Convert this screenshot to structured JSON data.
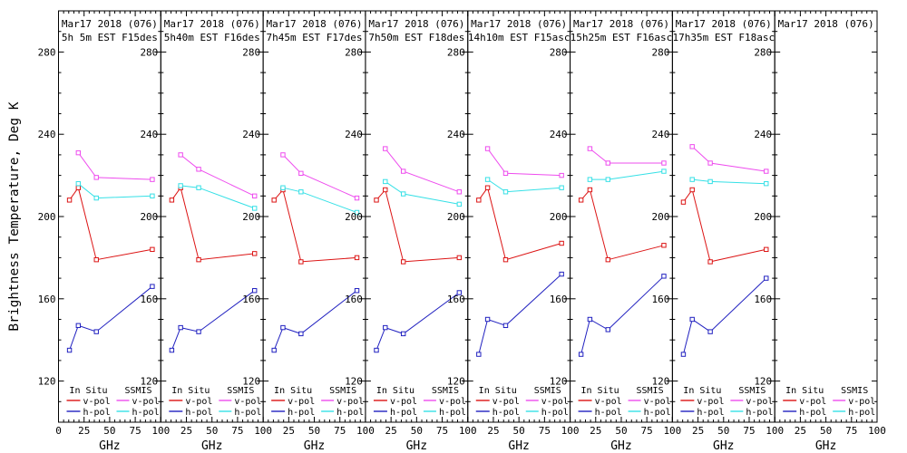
{
  "figure": {
    "y_axis_title": "Brightness Temperature, Deg K",
    "x_axis_title": "GHz",
    "background": "#ffffff",
    "frame_color": "#000000"
  },
  "colors": {
    "insitu_v": "#dc1414",
    "insitu_h": "#2121c0",
    "ssmis_v": "#ee4cee",
    "ssmis_h": "#35e0e6"
  },
  "legend": {
    "col1_header": "In Situ",
    "col2_header": "SSMIS",
    "vpol_label": "v-pol",
    "hpol_label": "h-pol"
  },
  "axes": {
    "x_range": [
      0,
      100
    ],
    "y_range": [
      100,
      300
    ],
    "x_ticks": [
      0,
      25,
      50,
      75,
      100
    ],
    "y_ticks": [
      120,
      160,
      200,
      240,
      280
    ],
    "x_minor_step": 5,
    "y_minor_step": 10,
    "grid": false
  },
  "chart_data": {
    "type": "line",
    "xlabel": "GHz",
    "ylabel": "Brightness Temperature, Deg K",
    "xlim": [
      0,
      100
    ],
    "ylim": [
      100,
      300
    ],
    "insitu_freqs_ghz": [
      10.7,
      19.35,
      37.0,
      91.655
    ],
    "ssmis_freqs_ghz": [
      19.35,
      37.0,
      91.655
    ],
    "panels": [
      {
        "title": "Mar17 2018 (076)",
        "subtitle": "5h 5m EST F15des",
        "series": [
          {
            "name": "insitu-v-pol",
            "color_key": "insitu_v",
            "x": [
              10.7,
              19.35,
              37.0,
              91.655
            ],
            "y": [
              208,
              214,
              179,
              184
            ]
          },
          {
            "name": "insitu-h-pol",
            "color_key": "insitu_h",
            "x": [
              10.7,
              19.35,
              37.0,
              91.655
            ],
            "y": [
              135,
              147,
              144,
              166
            ]
          },
          {
            "name": "ssmis-v-pol",
            "color_key": "ssmis_v",
            "x": [
              19.35,
              37.0,
              91.655
            ],
            "y": [
              231,
              219,
              218
            ]
          },
          {
            "name": "ssmis-h-pol",
            "color_key": "ssmis_h",
            "x": [
              19.35,
              37.0,
              91.655
            ],
            "y": [
              216,
              209,
              210
            ]
          }
        ]
      },
      {
        "title": "Mar17 2018 (076)",
        "subtitle": "5h40m EST F16des",
        "series": [
          {
            "name": "insitu-v-pol",
            "color_key": "insitu_v",
            "x": [
              10.7,
              19.35,
              37.0,
              91.655
            ],
            "y": [
              208,
              214,
              179,
              182
            ]
          },
          {
            "name": "insitu-h-pol",
            "color_key": "insitu_h",
            "x": [
              10.7,
              19.35,
              37.0,
              91.655
            ],
            "y": [
              135,
              146,
              144,
              164
            ]
          },
          {
            "name": "ssmis-v-pol",
            "color_key": "ssmis_v",
            "x": [
              19.35,
              37.0,
              91.655
            ],
            "y": [
              230,
              223,
              210
            ]
          },
          {
            "name": "ssmis-h-pol",
            "color_key": "ssmis_h",
            "x": [
              19.35,
              37.0,
              91.655
            ],
            "y": [
              215,
              214,
              204
            ]
          }
        ]
      },
      {
        "title": "Mar17 2018 (076)",
        "subtitle": "7h45m EST F17des",
        "series": [
          {
            "name": "insitu-v-pol",
            "color_key": "insitu_v",
            "x": [
              10.7,
              19.35,
              37.0,
              91.655
            ],
            "y": [
              208,
              213,
              178,
              180
            ]
          },
          {
            "name": "insitu-h-pol",
            "color_key": "insitu_h",
            "x": [
              10.7,
              19.35,
              37.0,
              91.655
            ],
            "y": [
              135,
              146,
              143,
              164
            ]
          },
          {
            "name": "ssmis-v-pol",
            "color_key": "ssmis_v",
            "x": [
              19.35,
              37.0,
              91.655
            ],
            "y": [
              230,
              221,
              209
            ]
          },
          {
            "name": "ssmis-h-pol",
            "color_key": "ssmis_h",
            "x": [
              19.35,
              37.0,
              91.655
            ],
            "y": [
              214,
              212,
              202
            ]
          }
        ]
      },
      {
        "title": "Mar17 2018 (076)",
        "subtitle": "7h50m EST F18des",
        "series": [
          {
            "name": "insitu-v-pol",
            "color_key": "insitu_v",
            "x": [
              10.7,
              19.35,
              37.0,
              91.655
            ],
            "y": [
              208,
              213,
              178,
              180
            ]
          },
          {
            "name": "insitu-h-pol",
            "color_key": "insitu_h",
            "x": [
              10.7,
              19.35,
              37.0,
              91.655
            ],
            "y": [
              135,
              146,
              143,
              163
            ]
          },
          {
            "name": "ssmis-v-pol",
            "color_key": "ssmis_v",
            "x": [
              19.35,
              37.0,
              91.655
            ],
            "y": [
              233,
              222,
              212
            ]
          },
          {
            "name": "ssmis-h-pol",
            "color_key": "ssmis_h",
            "x": [
              19.35,
              37.0,
              91.655
            ],
            "y": [
              217,
              211,
              206
            ]
          }
        ]
      },
      {
        "title": "Mar17 2018 (076)",
        "subtitle": "14h10m EST F15asc",
        "series": [
          {
            "name": "insitu-v-pol",
            "color_key": "insitu_v",
            "x": [
              10.7,
              19.35,
              37.0,
              91.655
            ],
            "y": [
              208,
              214,
              179,
              187
            ]
          },
          {
            "name": "insitu-h-pol",
            "color_key": "insitu_h",
            "x": [
              10.7,
              19.35,
              37.0,
              91.655
            ],
            "y": [
              133,
              150,
              147,
              172
            ]
          },
          {
            "name": "ssmis-v-pol",
            "color_key": "ssmis_v",
            "x": [
              19.35,
              37.0,
              91.655
            ],
            "y": [
              233,
              221,
              220
            ]
          },
          {
            "name": "ssmis-h-pol",
            "color_key": "ssmis_h",
            "x": [
              19.35,
              37.0,
              91.655
            ],
            "y": [
              218,
              212,
              214
            ]
          }
        ]
      },
      {
        "title": "Mar17 2018 (076)",
        "subtitle": "15h25m EST F16asc",
        "series": [
          {
            "name": "insitu-v-pol",
            "color_key": "insitu_v",
            "x": [
              10.7,
              19.35,
              37.0,
              91.655
            ],
            "y": [
              208,
              213,
              179,
              186
            ]
          },
          {
            "name": "insitu-h-pol",
            "color_key": "insitu_h",
            "x": [
              10.7,
              19.35,
              37.0,
              91.655
            ],
            "y": [
              133,
              150,
              145,
              171
            ]
          },
          {
            "name": "ssmis-v-pol",
            "color_key": "ssmis_v",
            "x": [
              19.35,
              37.0,
              91.655
            ],
            "y": [
              233,
              226,
              226
            ]
          },
          {
            "name": "ssmis-h-pol",
            "color_key": "ssmis_h",
            "x": [
              19.35,
              37.0,
              91.655
            ],
            "y": [
              218,
              218,
              222
            ]
          }
        ]
      },
      {
        "title": "Mar17 2018 (076)",
        "subtitle": "17h35m EST F18asc",
        "series": [
          {
            "name": "insitu-v-pol",
            "color_key": "insitu_v",
            "x": [
              10.7,
              19.35,
              37.0,
              91.655
            ],
            "y": [
              207,
              213,
              178,
              184
            ]
          },
          {
            "name": "insitu-h-pol",
            "color_key": "insitu_h",
            "x": [
              10.7,
              19.35,
              37.0,
              91.655
            ],
            "y": [
              133,
              150,
              144,
              170
            ]
          },
          {
            "name": "ssmis-v-pol",
            "color_key": "ssmis_v",
            "x": [
              19.35,
              37.0,
              91.655
            ],
            "y": [
              234,
              226,
              222
            ]
          },
          {
            "name": "ssmis-h-pol",
            "color_key": "ssmis_h",
            "x": [
              19.35,
              37.0,
              91.655
            ],
            "y": [
              218,
              217,
              216
            ]
          }
        ]
      },
      {
        "title": "Mar17 2018 (076)",
        "subtitle": "",
        "series": []
      }
    ]
  }
}
